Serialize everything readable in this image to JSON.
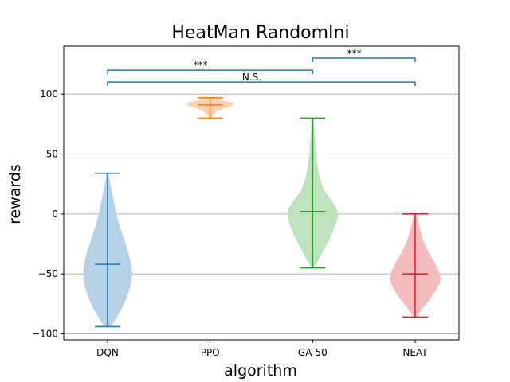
{
  "chart_data": {
    "type": "violin",
    "title": "HeatMan RandomIni",
    "xlabel": "algorithm",
    "ylabel": "rewards",
    "ylim": [
      -105,
      140
    ],
    "yticks": [
      -100,
      -50,
      0,
      50,
      100
    ],
    "grid": "horizontal",
    "categories": [
      "DQN",
      "PPO",
      "GA-50",
      "NEAT"
    ],
    "series": [
      {
        "category": "DQN",
        "color": "#1f77b4",
        "fill": "#b6d1e6",
        "min": -94,
        "max": 34,
        "mean": -42,
        "density": [
          [
            -94,
            3
          ],
          [
            -90,
            8
          ],
          [
            -80,
            17
          ],
          [
            -70,
            24
          ],
          [
            -60,
            29
          ],
          [
            -50,
            31
          ],
          [
            -40,
            29
          ],
          [
            -30,
            25
          ],
          [
            -20,
            20
          ],
          [
            -10,
            15
          ],
          [
            0,
            11
          ],
          [
            10,
            8
          ],
          [
            20,
            5
          ],
          [
            30,
            2
          ],
          [
            34,
            1
          ]
        ]
      },
      {
        "category": "PPO",
        "color": "#ff7f0e",
        "fill": "#ffd2ad",
        "min": 80,
        "max": 97,
        "mean": 91,
        "density": [
          [
            80,
            1
          ],
          [
            83,
            4
          ],
          [
            86,
            9
          ],
          [
            89,
            20
          ],
          [
            91,
            30
          ],
          [
            93,
            27
          ],
          [
            95,
            14
          ],
          [
            97,
            2
          ]
        ]
      },
      {
        "category": "GA-50",
        "color": "#2ca02c",
        "fill": "#bde3bd",
        "min": -45,
        "max": 80,
        "mean": 2,
        "density": [
          [
            -45,
            1
          ],
          [
            -40,
            6
          ],
          [
            -30,
            14
          ],
          [
            -20,
            22
          ],
          [
            -10,
            28
          ],
          [
            -5,
            31
          ],
          [
            0,
            32
          ],
          [
            5,
            30
          ],
          [
            10,
            25
          ],
          [
            20,
            14
          ],
          [
            30,
            9
          ],
          [
            40,
            6
          ],
          [
            50,
            4
          ],
          [
            60,
            3
          ],
          [
            70,
            2
          ],
          [
            80,
            1
          ]
        ]
      },
      {
        "category": "NEAT",
        "color": "#d62728",
        "fill": "#f3bbbc",
        "min": -86,
        "max": 0,
        "mean": -50,
        "density": [
          [
            -86,
            2
          ],
          [
            -80,
            8
          ],
          [
            -70,
            20
          ],
          [
            -60,
            29
          ],
          [
            -55,
            32
          ],
          [
            -50,
            31
          ],
          [
            -40,
            24
          ],
          [
            -30,
            15
          ],
          [
            -20,
            9
          ],
          [
            -10,
            5
          ],
          [
            0,
            1
          ]
        ]
      }
    ],
    "annotations": [
      {
        "from": "DQN",
        "to": "GA-50",
        "y": 120,
        "label": "***"
      },
      {
        "from": "GA-50",
        "to": "NEAT",
        "y": 130,
        "label": "***"
      },
      {
        "from": "DQN",
        "to": "NEAT",
        "y": 110,
        "label": "N.S."
      }
    ],
    "annotation_color": "#1f77b4"
  }
}
